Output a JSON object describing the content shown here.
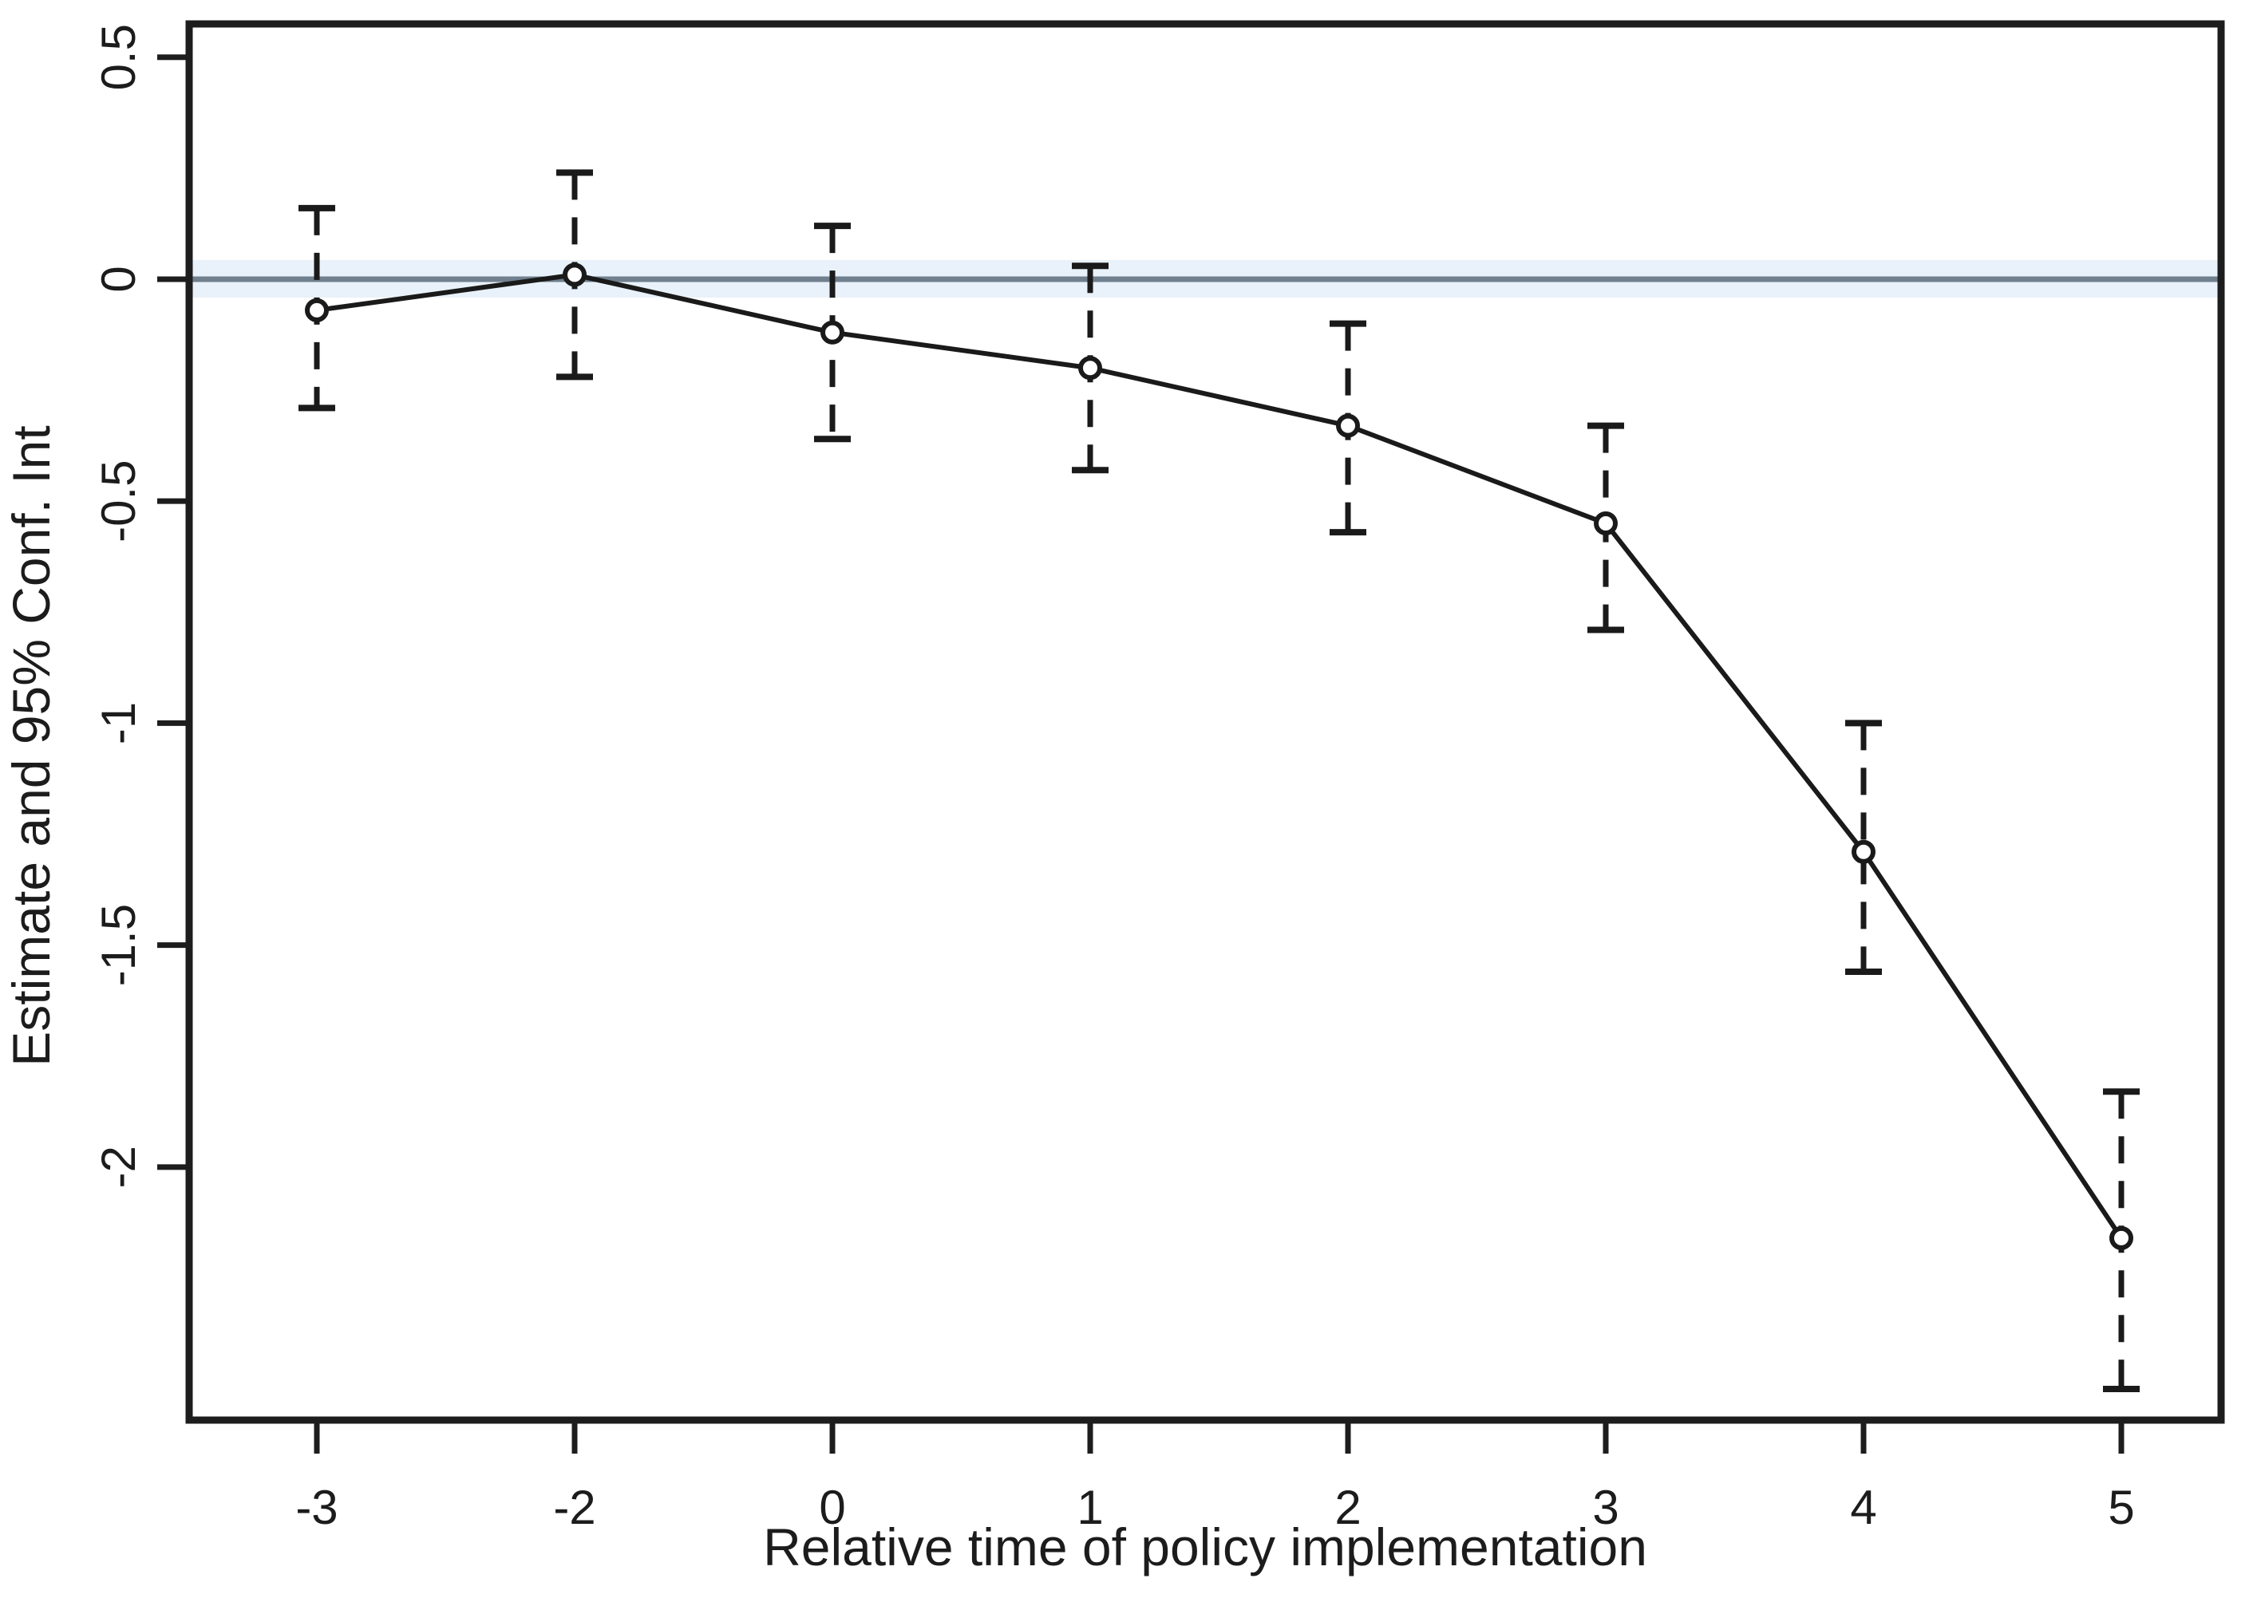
{
  "chart_data": {
    "type": "line",
    "title": "",
    "xlabel": "Relative time of policy implementation",
    "ylabel": "Estimate and 95% Conf. Int",
    "categories": [
      "-3",
      "-2",
      "0",
      "1",
      "2",
      "3",
      "4",
      "5"
    ],
    "series": [
      {
        "name": "Estimate",
        "values": [
          -0.07,
          0.01,
          -0.12,
          -0.2,
          -0.33,
          -0.55,
          -1.29,
          -2.16
        ]
      },
      {
        "name": "95% CI lower",
        "values": [
          -0.29,
          -0.22,
          -0.36,
          -0.43,
          -0.57,
          -0.79,
          -1.56,
          -2.5
        ]
      },
      {
        "name": "95% CI upper",
        "values": [
          0.16,
          0.24,
          0.12,
          0.03,
          -0.1,
          -0.33,
          -1.0,
          -1.83
        ]
      }
    ],
    "y_ticks": [
      0.5,
      0,
      -0.5,
      -1,
      -1.5,
      -2
    ],
    "y_tick_labels": [
      "0.5",
      "0",
      "-0.5",
      "-1",
      "-1.5",
      "-2"
    ],
    "ylim": [
      -2.57,
      0.575
    ],
    "reference_line_y": 0,
    "grid": false,
    "legend": false,
    "marker": "open-circle",
    "error_bars": "dashed-95-percent-ci",
    "colors": {
      "series": "#1a1a1a",
      "frame": "#1d1d1d",
      "reference_line": "#71808e",
      "reference_band": "#e9f2fa",
      "text": "#1c1c1c",
      "background": "#ffffff"
    }
  }
}
